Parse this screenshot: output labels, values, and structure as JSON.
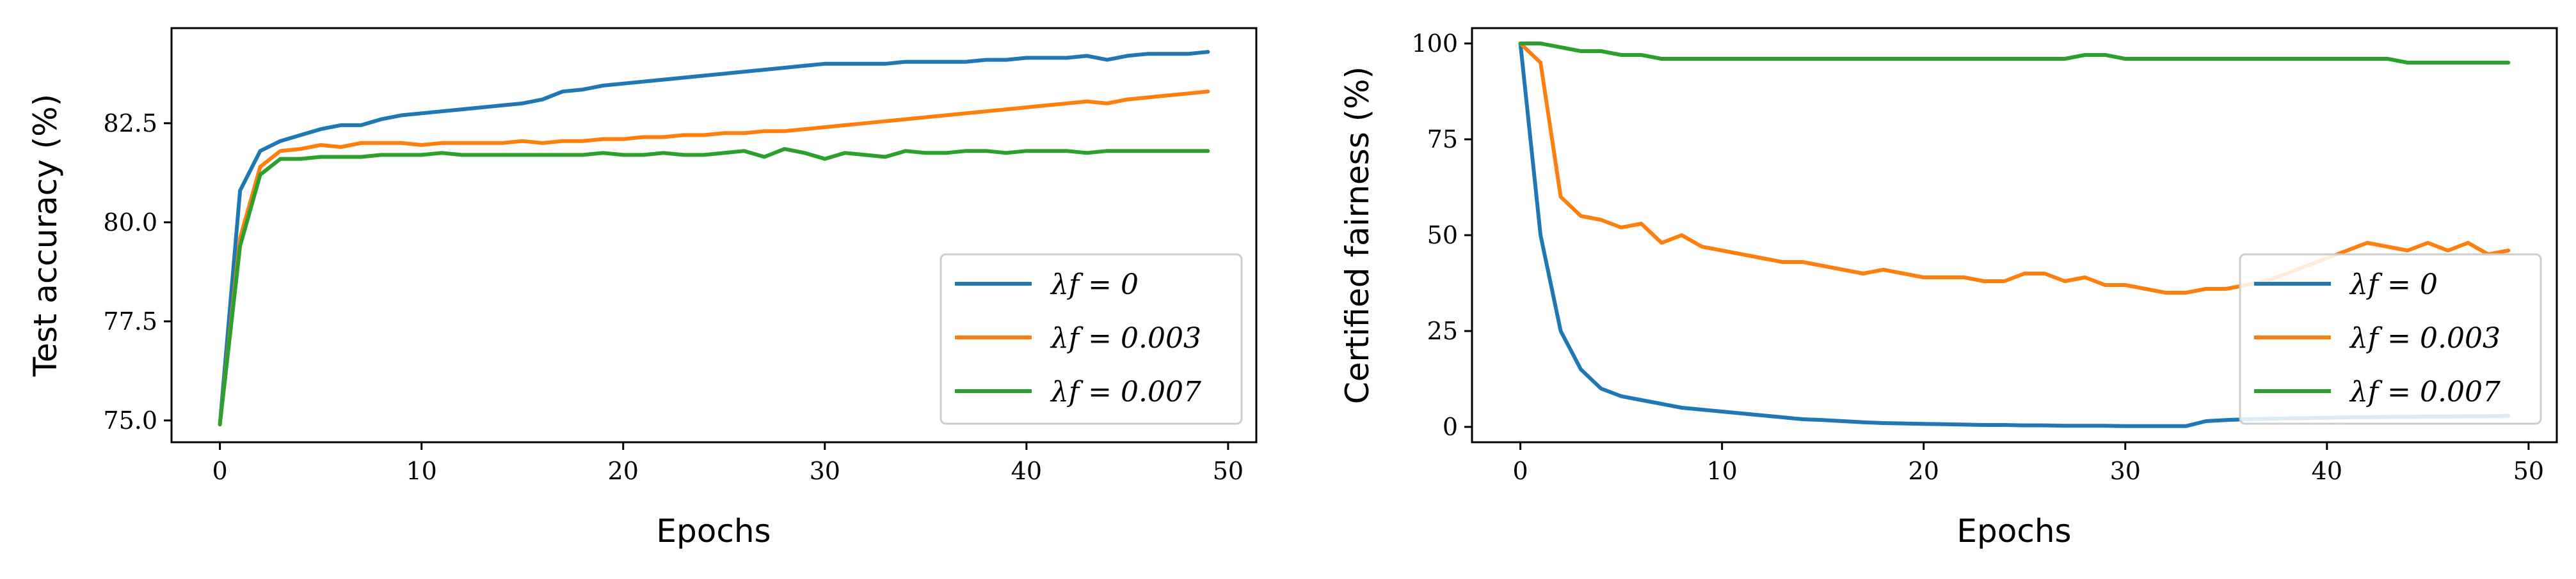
{
  "chart_data": [
    {
      "type": "line",
      "xlabel": "Epochs",
      "ylabel": "Test accuracy (%)",
      "xlim": [
        -2.4,
        51.4
      ],
      "ylim": [
        74.45,
        84.9
      ],
      "xticks": [
        0,
        10,
        20,
        30,
        40,
        50
      ],
      "yticks": [
        75.0,
        77.5,
        80.0,
        82.5
      ],
      "ytick_labels": [
        "75.0",
        "77.5",
        "80.0",
        "82.5"
      ],
      "legend_position": "lower-right",
      "series": [
        {
          "name": "λf = 0",
          "legend_label": "λ_f = 0",
          "color": "#1f77b4",
          "values": [
            74.9,
            80.8,
            81.8,
            82.05,
            82.2,
            82.35,
            82.45,
            82.45,
            82.6,
            82.7,
            82.75,
            82.8,
            82.85,
            82.9,
            82.95,
            83.0,
            83.1,
            83.3,
            83.35,
            83.45,
            83.5,
            83.55,
            83.6,
            83.65,
            83.7,
            83.75,
            83.8,
            83.85,
            83.9,
            83.95,
            84.0,
            84.0,
            84.0,
            84.0,
            84.05,
            84.05,
            84.05,
            84.05,
            84.1,
            84.1,
            84.15,
            84.15,
            84.15,
            84.2,
            84.1,
            84.2,
            84.25,
            84.25,
            84.25,
            84.3
          ]
        },
        {
          "name": "λf = 0.003",
          "legend_label": "λ_f = 0.003",
          "color": "#ff7f0e",
          "values": [
            74.9,
            79.6,
            81.4,
            81.8,
            81.85,
            81.95,
            81.9,
            82.0,
            82.0,
            82.0,
            81.95,
            82.0,
            82.0,
            82.0,
            82.0,
            82.05,
            82.0,
            82.05,
            82.05,
            82.1,
            82.1,
            82.15,
            82.15,
            82.2,
            82.2,
            82.25,
            82.25,
            82.3,
            82.3,
            82.35,
            82.4,
            82.45,
            82.5,
            82.55,
            82.6,
            82.65,
            82.7,
            82.75,
            82.8,
            82.85,
            82.9,
            82.95,
            83.0,
            83.05,
            83.0,
            83.1,
            83.15,
            83.2,
            83.25,
            83.3
          ]
        },
        {
          "name": "λf = 0.007",
          "legend_label": "λ_f = 0.007",
          "color": "#2ca02c",
          "values": [
            74.9,
            79.4,
            81.2,
            81.6,
            81.6,
            81.65,
            81.65,
            81.65,
            81.7,
            81.7,
            81.7,
            81.75,
            81.7,
            81.7,
            81.7,
            81.7,
            81.7,
            81.7,
            81.7,
            81.75,
            81.7,
            81.7,
            81.75,
            81.7,
            81.7,
            81.75,
            81.8,
            81.65,
            81.85,
            81.75,
            81.6,
            81.75,
            81.7,
            81.65,
            81.8,
            81.75,
            81.75,
            81.8,
            81.8,
            81.75,
            81.8,
            81.8,
            81.8,
            81.75,
            81.8,
            81.8,
            81.8,
            81.8,
            81.8,
            81.8
          ]
        }
      ]
    },
    {
      "type": "line",
      "xlabel": "Epochs",
      "ylabel": "Certified fairness (%)",
      "xlim": [
        -2.4,
        51.4
      ],
      "ylim": [
        -4,
        104
      ],
      "xticks": [
        0,
        10,
        20,
        30,
        40,
        50
      ],
      "yticks": [
        0,
        25,
        50,
        75,
        100
      ],
      "ytick_labels": [
        "0",
        "25",
        "50",
        "75",
        "100"
      ],
      "legend_position": "lower-right",
      "series": [
        {
          "name": "λf = 0",
          "legend_label": "λ_f = 0",
          "color": "#1f77b4",
          "values": [
            100,
            50,
            25,
            15,
            10,
            8,
            7,
            6,
            5,
            4.5,
            4,
            3.5,
            3,
            2.5,
            2,
            1.8,
            1.5,
            1.2,
            1,
            0.9,
            0.8,
            0.7,
            0.6,
            0.5,
            0.5,
            0.4,
            0.4,
            0.3,
            0.3,
            0.3,
            0.2,
            0.2,
            0.2,
            0.2,
            1.5,
            1.8,
            2.0,
            2.1,
            2.2,
            2.3,
            2.4,
            2.5,
            2.5,
            2.6,
            2.6,
            2.7,
            2.7,
            2.8,
            2.8,
            2.9
          ]
        },
        {
          "name": "λf = 0.003",
          "legend_label": "λ_f = 0.003",
          "color": "#ff7f0e",
          "values": [
            100,
            95,
            60,
            55,
            54,
            52,
            53,
            48,
            50,
            47,
            46,
            45,
            44,
            43,
            43,
            42,
            41,
            40,
            41,
            40,
            39,
            39,
            39,
            38,
            38,
            40,
            40,
            38,
            39,
            37,
            37,
            36,
            35,
            35,
            36,
            36,
            37,
            38,
            40,
            42,
            44,
            46,
            48,
            47,
            46,
            48,
            46,
            48,
            45,
            46
          ]
        },
        {
          "name": "λf = 0.007",
          "legend_label": "λ_f = 0.007",
          "color": "#2ca02c",
          "values": [
            100,
            100,
            99,
            98,
            98,
            97,
            97,
            96,
            96,
            96,
            96,
            96,
            96,
            96,
            96,
            96,
            96,
            96,
            96,
            96,
            96,
            96,
            96,
            96,
            96,
            96,
            96,
            96,
            97,
            97,
            96,
            96,
            96,
            96,
            96,
            96,
            96,
            96,
            96,
            96,
            96,
            96,
            96,
            96,
            95,
            95,
            95,
            95,
            95,
            95
          ]
        }
      ]
    }
  ]
}
